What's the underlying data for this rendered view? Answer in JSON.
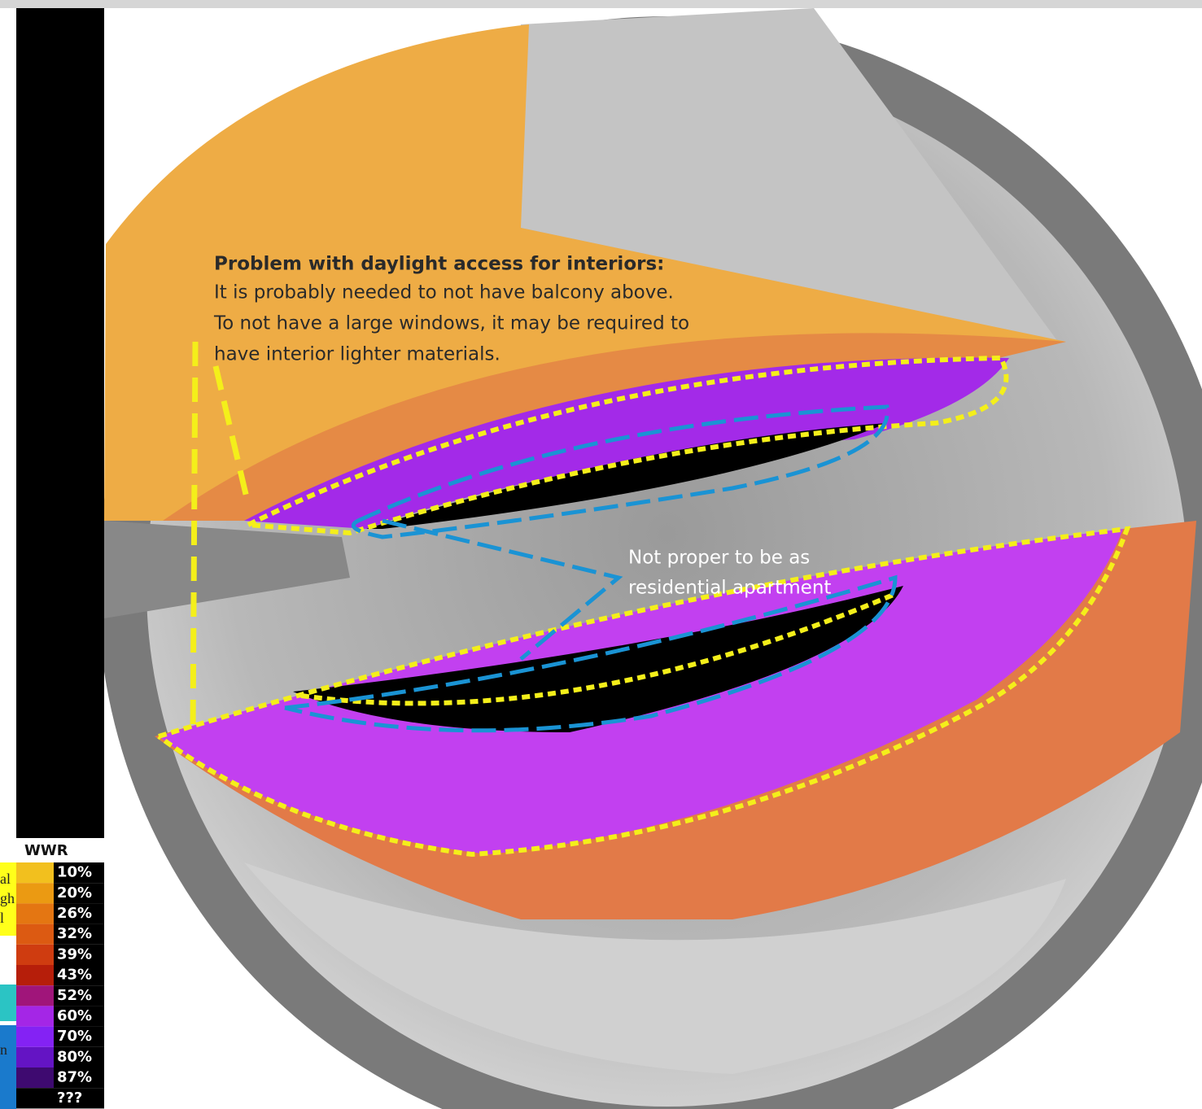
{
  "annotations": {
    "daylight_title": "Problem with daylight access for interiors:",
    "daylight_lines": [
      "It is probably needed to not have balcony above.",
      "To not have a large windows, it may be required to",
      "have interior lighter materials."
    ],
    "residential_lines": [
      "Not proper to be as",
      "residential apartment"
    ]
  },
  "legend": {
    "title": "WWR",
    "entries": [
      {
        "label": "10%",
        "color": "#f2c01e"
      },
      {
        "label": "20%",
        "color": "#eb9a12"
      },
      {
        "label": "26%",
        "color": "#e47612"
      },
      {
        "label": "32%",
        "color": "#dc5a12"
      },
      {
        "label": "39%",
        "color": "#cf3c10"
      },
      {
        "label": "43%",
        "color": "#b61e0a"
      },
      {
        "label": "52%",
        "color": "#a0157a"
      },
      {
        "label": "60%",
        "color": "#a426e6"
      },
      {
        "label": "70%",
        "color": "#8422f4"
      },
      {
        "label": "80%",
        "color": "#6414c4"
      },
      {
        "label": "87%",
        "color": "#3e0a70"
      },
      {
        "label": "???",
        "color": "#000000"
      }
    ]
  },
  "left_fragments": [
    "al",
    "gh",
    "l",
    "n"
  ]
}
